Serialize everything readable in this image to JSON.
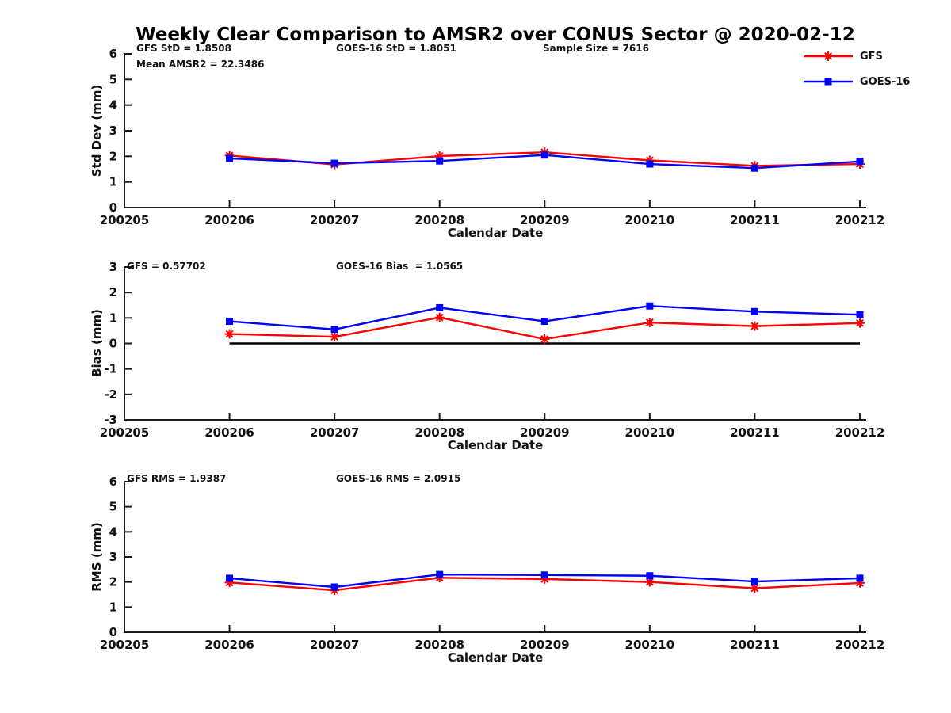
{
  "title": "Weekly Clear Comparison to AMSR2 over CONUS Sector @ 2020-02-12",
  "colors": {
    "gfs": "#ff0000",
    "goes16": "#0000ff",
    "axis": "#1a1a1a",
    "zero_line": "#000000",
    "background": "#ffffff"
  },
  "legend": {
    "position": "top-right",
    "items": [
      {
        "label": "GFS",
        "color": "#ff0000",
        "marker": "asterisk"
      },
      {
        "label": "GOES-16",
        "color": "#0000ff",
        "marker": "square"
      }
    ]
  },
  "chart_data": [
    {
      "type": "line",
      "name": "std-dev",
      "ylabel": "Std Dev (mm)",
      "xlabel": "Calendar Date",
      "ylim": [
        0,
        6
      ],
      "y_ticks": [
        0,
        1,
        2,
        3,
        4,
        5,
        6
      ],
      "x_ticks": [
        "200205",
        "200206",
        "200207",
        "200208",
        "200209",
        "200210",
        "200211",
        "200212"
      ],
      "x": [
        "200206",
        "200207",
        "200208",
        "200209",
        "200210",
        "200211",
        "200212"
      ],
      "grid": false,
      "zero_line": false,
      "series": [
        {
          "name": "GFS",
          "color": "#ff0000",
          "marker": "asterisk",
          "values": [
            2.03,
            1.68,
            2.01,
            2.16,
            1.84,
            1.63,
            1.7
          ]
        },
        {
          "name": "GOES-16",
          "color": "#0000ff",
          "marker": "square",
          "values": [
            1.92,
            1.73,
            1.82,
            2.05,
            1.7,
            1.54,
            1.8
          ]
        }
      ],
      "annotations": [
        {
          "text": "GFS StD = 1.8508"
        },
        {
          "text": "GOES-16 StD = 1.8051"
        },
        {
          "text": "Sample Size = 7616"
        },
        {
          "text": "Mean AMSR2 = 22.3486"
        }
      ]
    },
    {
      "type": "line",
      "name": "bias",
      "ylabel": "Bias (mm)",
      "xlabel": "Calendar Date",
      "ylim": [
        -3,
        3
      ],
      "y_ticks": [
        -3,
        -2,
        -1,
        0,
        1,
        2,
        3
      ],
      "x_ticks": [
        "200205",
        "200206",
        "200207",
        "200208",
        "200209",
        "200210",
        "200211",
        "200212"
      ],
      "x": [
        "200206",
        "200207",
        "200208",
        "200209",
        "200210",
        "200211",
        "200212"
      ],
      "grid": false,
      "zero_line": true,
      "series": [
        {
          "name": "GFS",
          "color": "#ff0000",
          "marker": "asterisk",
          "values": [
            0.37,
            0.26,
            1.02,
            0.17,
            0.82,
            0.68,
            0.8
          ]
        },
        {
          "name": "GOES-16",
          "color": "#0000ff",
          "marker": "square",
          "values": [
            0.87,
            0.55,
            1.4,
            0.87,
            1.47,
            1.25,
            1.13
          ]
        }
      ],
      "annotations": [
        {
          "text": "GFS = 0.57702"
        },
        {
          "text": "GOES-16 Bias  = 1.0565"
        }
      ]
    },
    {
      "type": "line",
      "name": "rms",
      "ylabel": "RMS (mm)",
      "xlabel": "Calendar Date",
      "ylim": [
        0,
        6
      ],
      "y_ticks": [
        0,
        1,
        2,
        3,
        4,
        5,
        6
      ],
      "x_ticks": [
        "200205",
        "200206",
        "200207",
        "200208",
        "200209",
        "200210",
        "200211",
        "200212"
      ],
      "x": [
        "200206",
        "200207",
        "200208",
        "200209",
        "200210",
        "200211",
        "200212"
      ],
      "grid": false,
      "zero_line": false,
      "series": [
        {
          "name": "GFS",
          "color": "#ff0000",
          "marker": "asterisk",
          "values": [
            1.98,
            1.67,
            2.17,
            2.12,
            2.0,
            1.75,
            1.96
          ]
        },
        {
          "name": "GOES-16",
          "color": "#0000ff",
          "marker": "square",
          "values": [
            2.15,
            1.8,
            2.3,
            2.28,
            2.25,
            2.02,
            2.15
          ]
        }
      ],
      "annotations": [
        {
          "text": "GFS RMS = 1.9387"
        },
        {
          "text": "GOES-16 RMS = 2.0915"
        }
      ]
    }
  ]
}
